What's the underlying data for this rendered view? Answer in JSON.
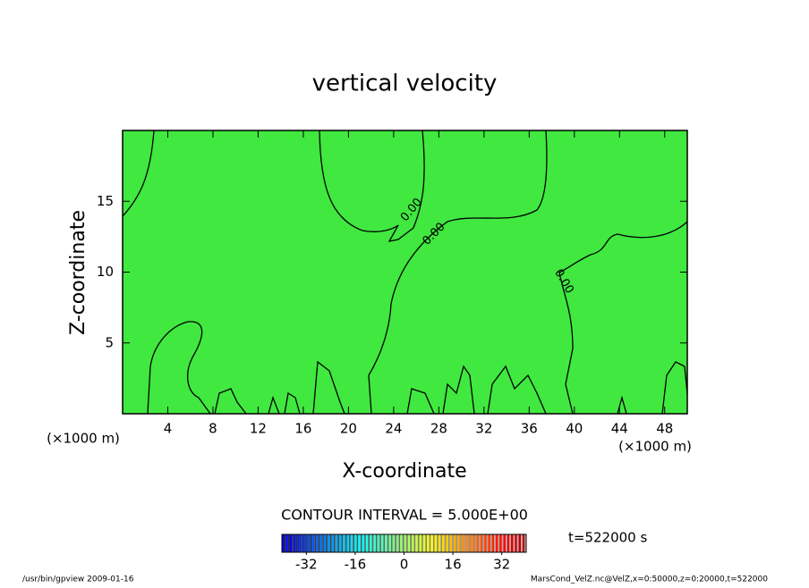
{
  "chart_data": {
    "type": "contour",
    "title": "vertical velocity",
    "x_label": "X-coordinate",
    "y_label": "Z-coordinate",
    "x_unit": "(×1000 m)",
    "y_unit": "(×1000 m)",
    "xlim": [
      0,
      50
    ],
    "xticks": [
      4,
      8,
      12,
      16,
      20,
      24,
      28,
      32,
      36,
      40,
      44,
      48
    ],
    "ylim": [
      0,
      20
    ],
    "yticks": [
      5,
      10,
      15
    ],
    "contour_labels": [
      "0.00",
      "0.00",
      "0.00"
    ],
    "contour_interval": "CONTOUR INTERVAL = 5.000E+00",
    "colorbar_lim": [
      -40,
      40
    ],
    "colorbar_ticks": [
      -32,
      -16,
      0,
      16,
      32
    ],
    "time_label": "t=522000 s",
    "footer_left": "/usr/bin/gpview   2009-01-16",
    "footer_right": "MarsCond_VelZ.nc@VelZ,x=0:50000,z=0:20000,t=522000",
    "fill_color": "#40e840"
  }
}
